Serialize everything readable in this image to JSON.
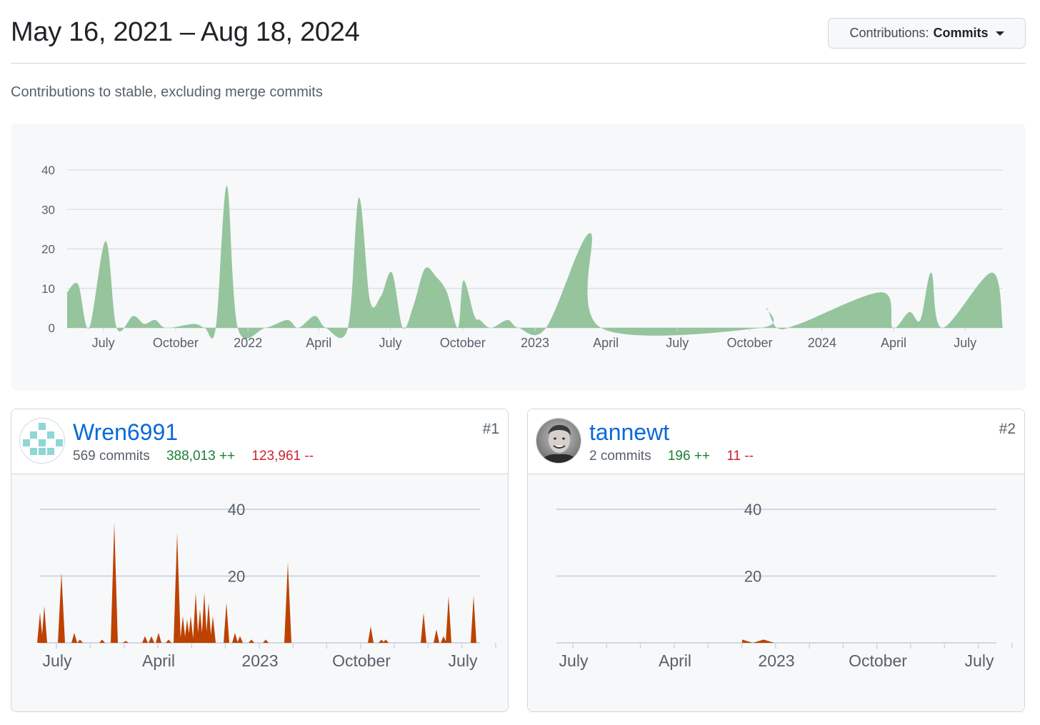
{
  "header": {
    "range": "May 16, 2021 – Aug 18, 2024",
    "contrib_prefix": "Contributions:",
    "contrib_value": "Commits"
  },
  "subtitle": "Contributions to stable, excluding merge commits",
  "colors": {
    "green_fill": "#95c49d",
    "orange_fill": "#bd4200",
    "link": "#0969da",
    "add": "#1a7f37",
    "del": "#cf222e",
    "panel_bg": "#f6f8fa"
  },
  "chart_data": [
    {
      "type": "area",
      "title": "",
      "x_start": "2021-05-16",
      "x_end": "2024-08-18",
      "ylim": [
        0,
        40
      ],
      "yticks": [
        "0",
        "10",
        "20",
        "30",
        "40"
      ],
      "xticks": [
        "July",
        "October",
        "2022",
        "April",
        "July",
        "October",
        "2023",
        "April",
        "July",
        "October",
        "2024",
        "April",
        "July"
      ],
      "grid": true,
      "color": "#95c49d",
      "series": [
        {
          "points": [
            [
              "2021-05-16",
              9
            ],
            [
              "2021-05-30",
              11
            ],
            [
              "2021-06-13",
              0
            ],
            [
              "2021-07-04",
              22
            ],
            [
              "2021-07-18",
              0
            ],
            [
              "2021-08-08",
              3
            ],
            [
              "2021-08-22",
              1
            ],
            [
              "2021-09-05",
              2
            ],
            [
              "2021-09-19",
              0
            ],
            [
              "2021-10-24",
              1
            ],
            [
              "2021-11-07",
              0
            ],
            [
              "2021-11-21",
              0
            ],
            [
              "2021-12-05",
              36
            ],
            [
              "2021-12-19",
              0
            ],
            [
              "2022-01-23",
              0
            ],
            [
              "2022-02-20",
              2
            ],
            [
              "2022-03-06",
              0
            ],
            [
              "2022-03-27",
              3
            ],
            [
              "2022-04-10",
              0
            ],
            [
              "2022-05-08",
              0
            ],
            [
              "2022-05-22",
              33
            ],
            [
              "2022-06-05",
              7
            ],
            [
              "2022-06-19",
              8
            ],
            [
              "2022-07-03",
              14
            ],
            [
              "2022-07-17",
              0
            ],
            [
              "2022-07-31",
              6
            ],
            [
              "2022-08-14",
              15
            ],
            [
              "2022-08-28",
              13
            ],
            [
              "2022-09-11",
              9
            ],
            [
              "2022-09-25",
              0
            ],
            [
              "2022-10-02",
              12
            ],
            [
              "2022-10-16",
              3
            ],
            [
              "2022-10-23",
              2
            ],
            [
              "2022-11-06",
              0
            ],
            [
              "2022-11-27",
              2
            ],
            [
              "2022-12-11",
              0
            ],
            [
              "2023-01-15",
              0
            ],
            [
              "2023-03-12",
              24
            ],
            [
              "2023-03-26",
              0
            ],
            [
              "2023-10-15",
              0
            ],
            [
              "2023-10-22",
              5
            ],
            [
              "2023-11-05",
              0
            ],
            [
              "2023-12-03",
              1
            ],
            [
              "2024-03-17",
              9
            ],
            [
              "2024-03-31",
              0
            ],
            [
              "2024-04-21",
              4
            ],
            [
              "2024-05-05",
              2
            ],
            [
              "2024-05-19",
              14
            ],
            [
              "2024-06-02",
              0
            ],
            [
              "2024-08-04",
              14
            ],
            [
              "2024-08-18",
              0
            ]
          ]
        }
      ]
    },
    {
      "type": "area",
      "title": "",
      "ylim": [
        0,
        40
      ],
      "yticks": [
        "20",
        "40"
      ],
      "xticks": [
        "July",
        "April",
        "2023",
        "October",
        "July"
      ],
      "color": "#bd4200"
    },
    {
      "type": "area",
      "title": "",
      "ylim": [
        0,
        40
      ],
      "yticks": [
        "20",
        "40"
      ],
      "xticks": [
        "July",
        "April",
        "2023",
        "October",
        "July"
      ],
      "color": "#bd4200",
      "series": [
        {
          "points": [
            [
              "2022-12-11",
              1
            ],
            [
              "2022-12-25",
              0
            ],
            [
              "2023-01-08",
              1
            ],
            [
              "2023-01-15",
              0
            ]
          ]
        }
      ]
    }
  ],
  "contributors": [
    {
      "name": "Wren6991",
      "commits": "569 commits",
      "additions": "388,013 ++",
      "deletions": "123,961 --",
      "rank": "#1",
      "avatar": "pixel-identicon"
    },
    {
      "name": "tannewt",
      "commits": "2 commits",
      "additions": "196 ++",
      "deletions": "11 --",
      "rank": "#2",
      "avatar": "photo"
    }
  ]
}
